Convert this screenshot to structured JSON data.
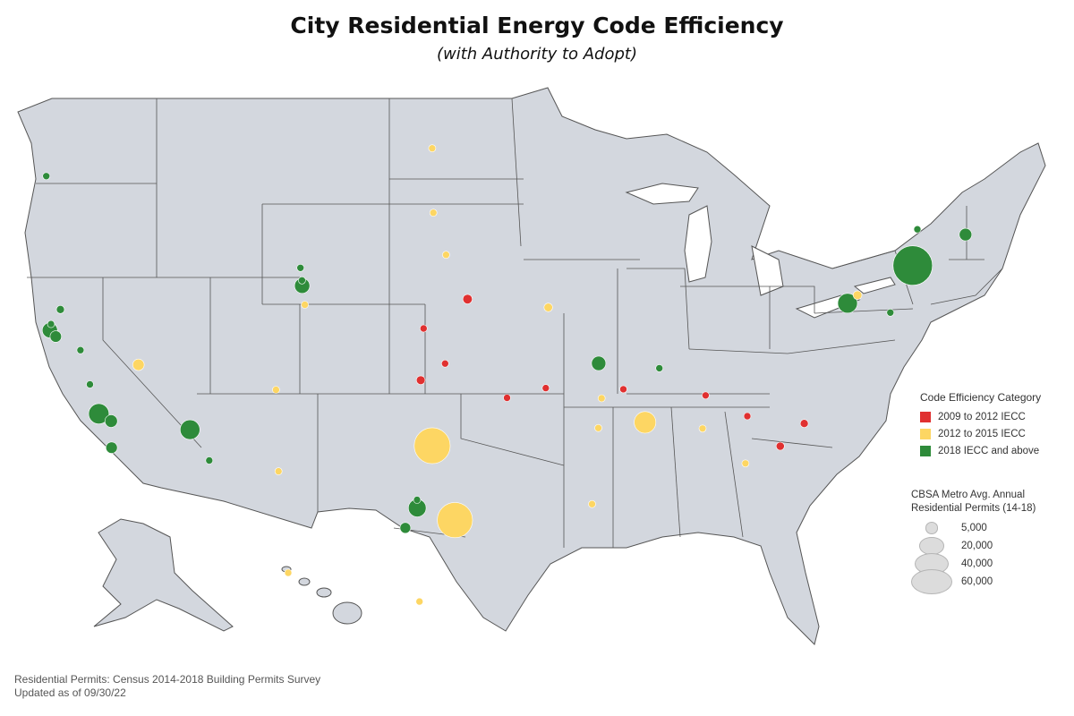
{
  "title": "City Residential Energy Code Efficiency",
  "subtitle": "(with Authority to Adopt)",
  "colors": {
    "land": "#d3d7de",
    "border": "#555555",
    "red": "#e03030",
    "yellow": "#fdd663",
    "green": "#2e8b3a"
  },
  "legend": {
    "title": "Code Efficiency Category",
    "items": [
      {
        "label": "2009 to 2012 IECC",
        "color": "#e03030"
      },
      {
        "label": "2012 to 2015 IECC",
        "color": "#fdd663"
      },
      {
        "label": "2018 IECC and above",
        "color": "#2e8b3a"
      }
    ]
  },
  "size_legend": {
    "title_line1": "CBSA Metro Avg. Annual",
    "title_line2": "Residential Permits (14-18)",
    "items": [
      {
        "label": "5,000",
        "value": 5000
      },
      {
        "label": "20,000",
        "value": 20000
      },
      {
        "label": "40,000",
        "value": 40000
      },
      {
        "label": "60,000",
        "value": 60000
      }
    ]
  },
  "footer": {
    "line1": "Residential Permits: Census 2014-2018 Building Permits Survey",
    "line2": "Updated as of 09/30/22"
  },
  "cities": [
    {
      "lat": 45.5,
      "lon": -122.7,
      "cat": "green",
      "permits": 1500
    },
    {
      "lat": 38.6,
      "lon": -121.5,
      "cat": "green",
      "permits": 2500
    },
    {
      "lat": 37.9,
      "lon": -122.3,
      "cat": "green",
      "permits": 1000
    },
    {
      "lat": 37.6,
      "lon": -122.4,
      "cat": "green",
      "permits": 9000
    },
    {
      "lat": 37.3,
      "lon": -121.9,
      "cat": "green",
      "permits": 5000
    },
    {
      "lat": 36.7,
      "lon": -119.8,
      "cat": "green",
      "permits": 1000
    },
    {
      "lat": 36.1,
      "lon": -115.2,
      "cat": "yellow",
      "permits": 5000
    },
    {
      "lat": 35.3,
      "lon": -119.0,
      "cat": "green",
      "permits": 1000
    },
    {
      "lat": 34.1,
      "lon": -118.25,
      "cat": "green",
      "permits": 16000
    },
    {
      "lat": 33.8,
      "lon": -117.2,
      "cat": "green",
      "permits": 6000
    },
    {
      "lat": 32.72,
      "lon": -117.16,
      "cat": "green",
      "permits": 5000
    },
    {
      "lat": 33.45,
      "lon": -112.07,
      "cat": "green",
      "permits": 15000
    },
    {
      "lat": 32.2,
      "lon": -110.9,
      "cat": "green",
      "permits": 1500
    },
    {
      "lat": 31.76,
      "lon": -106.49,
      "cat": "yellow",
      "permits": 1000
    },
    {
      "lat": 35.08,
      "lon": -106.65,
      "cat": "yellow",
      "permits": 900
    },
    {
      "lat": 40.6,
      "lon": -105.1,
      "cat": "green",
      "permits": 900
    },
    {
      "lat": 40.0,
      "lon": -105.0,
      "cat": "green",
      "permits": 1000
    },
    {
      "lat": 39.74,
      "lon": -104.99,
      "cat": "green",
      "permits": 9000
    },
    {
      "lat": 38.83,
      "lon": -104.82,
      "cat": "yellow",
      "permits": 1600
    },
    {
      "lat": 46.88,
      "lon": -96.8,
      "cat": "yellow",
      "permits": 1000
    },
    {
      "lat": 43.55,
      "lon": -96.73,
      "cat": "yellow",
      "permits": 1000
    },
    {
      "lat": 41.26,
      "lon": -95.93,
      "cat": "yellow",
      "permits": 2000
    },
    {
      "lat": 39.1,
      "lon": -94.58,
      "cat": "red",
      "permits": 3500
    },
    {
      "lat": 38.7,
      "lon": -89.9,
      "cat": "yellow",
      "permits": 2800
    },
    {
      "lat": 37.69,
      "lon": -97.34,
      "cat": "red",
      "permits": 1200
    },
    {
      "lat": 36.15,
      "lon": -95.99,
      "cat": "red",
      "permits": 1700
    },
    {
      "lat": 35.47,
      "lon": -97.52,
      "cat": "red",
      "permits": 3000
    },
    {
      "lat": 34.75,
      "lon": -92.29,
      "cat": "red",
      "permits": 800
    },
    {
      "lat": 35.15,
      "lon": -90.05,
      "cat": "red",
      "permits": 1600
    },
    {
      "lat": 32.8,
      "lon": -96.8,
      "cat": "yellow",
      "permits": 50000
    },
    {
      "lat": 29.76,
      "lon": -95.37,
      "cat": "yellow",
      "permits": 48000
    },
    {
      "lat": 30.6,
      "lon": -97.75,
      "cat": "green",
      "permits": 800
    },
    {
      "lat": 30.27,
      "lon": -97.74,
      "cat": "green",
      "permits": 12000
    },
    {
      "lat": 29.42,
      "lon": -98.49,
      "cat": "green",
      "permits": 4500
    },
    {
      "lat": 26.2,
      "lon": -97.6,
      "cat": "yellow",
      "permits": 1200
    },
    {
      "lat": 36.16,
      "lon": -86.78,
      "cat": "green",
      "permits": 8000
    },
    {
      "lat": 35.96,
      "lon": -83.92,
      "cat": "green",
      "permits": 1000
    },
    {
      "lat": 34.73,
      "lon": -86.59,
      "cat": "yellow",
      "permits": 900
    },
    {
      "lat": 35.1,
      "lon": -85.2,
      "cat": "red",
      "permits": 800
    },
    {
      "lat": 33.52,
      "lon": -86.8,
      "cat": "yellow",
      "permits": 900
    },
    {
      "lat": 33.75,
      "lon": -84.39,
      "cat": "yellow",
      "permits": 18000
    },
    {
      "lat": 34.85,
      "lon": -82.4,
      "cat": "red",
      "permits": 2000
    },
    {
      "lat": 33.5,
      "lon": -82.5,
      "cat": "yellow",
      "permits": 800
    },
    {
      "lat": 34.0,
      "lon": -81.03,
      "cat": "red",
      "permits": 1500
    },
    {
      "lat": 33.7,
      "lon": -78.9,
      "cat": "red",
      "permits": 2500
    },
    {
      "lat": 32.78,
      "lon": -79.93,
      "cat": "red",
      "permits": 2600
    },
    {
      "lat": 32.08,
      "lon": -81.09,
      "cat": "yellow",
      "permits": 900
    },
    {
      "lat": 30.43,
      "lon": -87.2,
      "cat": "yellow",
      "permits": 900
    },
    {
      "lat": 42.65,
      "lon": -73.75,
      "cat": "green",
      "permits": 900
    },
    {
      "lat": 42.36,
      "lon": -71.06,
      "cat": "green",
      "permits": 6000
    },
    {
      "lat": 40.71,
      "lon": -74.01,
      "cat": "green",
      "permits": 60000
    },
    {
      "lat": 39.29,
      "lon": -76.61,
      "cat": "yellow",
      "permits": 3000
    },
    {
      "lat": 38.9,
      "lon": -77.04,
      "cat": "green",
      "permits": 15000
    },
    {
      "lat": 38.45,
      "lon": -75.2,
      "cat": "green",
      "permits": 1000
    },
    {
      "lat": 21.3,
      "lon": -157.85,
      "cat": "yellow",
      "permits": 900
    }
  ]
}
